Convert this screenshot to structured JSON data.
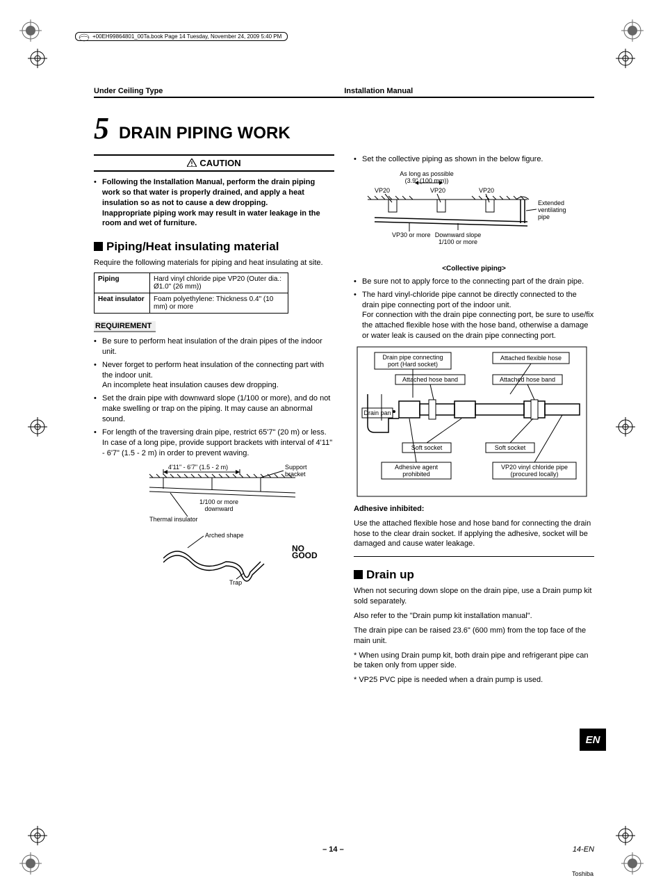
{
  "booktag": "+00EH99864801_00Ta.book  Page 14  Tuesday, November 24, 2009  5:40 PM",
  "header": {
    "left": "Under Ceiling Type",
    "right": "Installation Manual"
  },
  "chapter": {
    "num": "5",
    "title": "DRAIN PIPING WORK"
  },
  "caution": {
    "label": "CAUTION",
    "text": "Following the Installation Manual, perform the drain piping work so that water is properly drained, and apply a heat insulation so as not to cause a dew dropping.",
    "text2": "Inappropriate piping work may result in water leakage in the room and wet of furniture."
  },
  "sec_piping": {
    "title": "Piping/Heat insulating material",
    "intro": "Require the following materials for piping and heat insulating at site.",
    "table": {
      "r1h": "Piping",
      "r1v": "Hard vinyl chloride pipe VP20 (Outer dia.: Ø1.0\" (26 mm))",
      "r2h": "Heat insulator",
      "r2v": "Foam polyethylene: Thickness 0.4\" (10 mm) or more"
    },
    "req_label": "REQUIREMENT",
    "req": [
      "Be sure to perform heat insulation of the drain pipes of the indoor unit.",
      "Never forget to perform heat insulation of the connecting part with the indoor unit.",
      "Set the drain pipe with downward slope (1/100 or more), and do not make swelling or trap on the piping. It may cause an abnormal sound.",
      "For length of the traversing drain pipe, restrict 65'7\" (20 m) or less."
    ],
    "req_cont1": "An incomplete heat insulation causes dew dropping.",
    "req_cont2": "In case of a long pipe, provide support brackets with interval of 4'11\" - 6'7\" (1.5 - 2 m) in order to prevent waving.",
    "fig1": {
      "span": "4'11\" - 6'7\" (1.5 - 2 m)",
      "bracket": "Support bracket",
      "slope": "1/100 or more downward",
      "thermal": "Thermal insulator",
      "arched": "Arched shape",
      "trap": "Trap",
      "nogood": "NO GOOD"
    }
  },
  "sec_collective": {
    "intro": "Set the collective piping as shown in the below figure.",
    "fig": {
      "aslong": "As long as possible (3.9\" (100 mm))",
      "vp20": "VP20",
      "vp30": "VP30 or more",
      "slope": "Downward slope 1/100 or more",
      "ext": "Extended ventilating pipe"
    },
    "caption": "<Collective piping>",
    "bullets": [
      "Be sure not to apply force to the connecting part of the drain pipe.",
      "The hard vinyl-chloride pipe cannot be directly connected to the drain pipe connecting port of the indoor unit."
    ],
    "cont": "For connection with the drain pipe connecting port, be sure to use/fix the attached flexible hose with the hose band, otherwise a damage or water leak is caused on the drain pipe connecting port.",
    "fig2": {
      "port": "Drain pipe connecting port (Hard socket)",
      "flex": "Attached flexible hose",
      "band": "Attached hose band",
      "pan": "Drain pan",
      "soft": "Soft socket",
      "adh": "Adhesive agent prohibited",
      "vp20p": "VP20 vinyl chloride pipe (procured locally)"
    },
    "adh_title": "Adhesive inhibited:",
    "adh_text": "Use the attached flexible hose and hose band for connecting the drain hose to the clear drain socket. If applying the adhesive, socket will be damaged and cause water leakage."
  },
  "sec_drainup": {
    "title": "Drain up",
    "p1": "When not securing down slope on the drain pipe, use a Drain pump kit sold separately.",
    "p2": "Also refer to the \"Drain pump kit installation manual\".",
    "p3": "The drain pipe can be raised 23.6\" (600 mm) from the top face of the main unit.",
    "star1": "When using Drain pump kit, both drain pipe and refrigerant pipe can be taken only from upper side.",
    "star2": "VP25 PVC pipe is needed when a drain pump is used."
  },
  "footer": {
    "center": "– 14 –",
    "right": "14-EN"
  },
  "lang_tab": "EN",
  "brand": "Toshiba"
}
